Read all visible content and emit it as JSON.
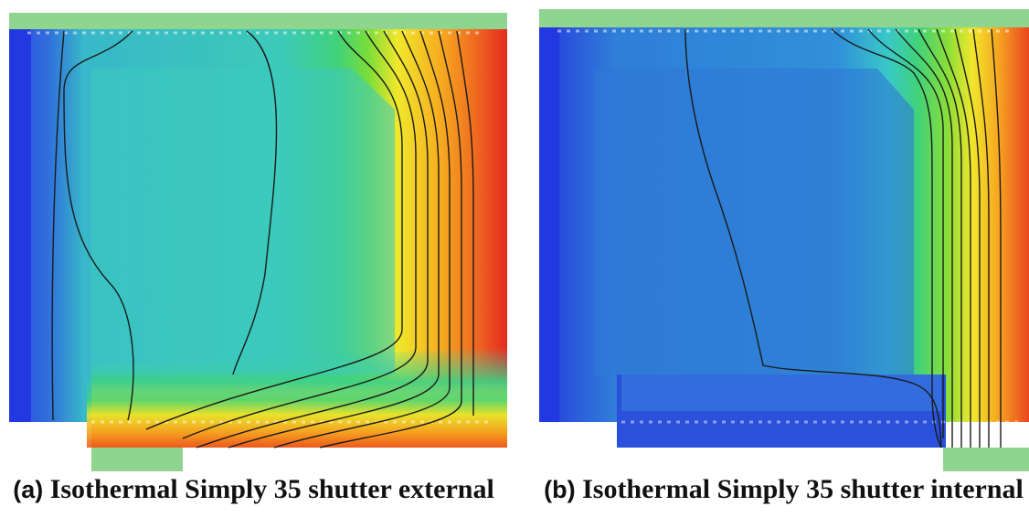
{
  "panels": [
    {
      "id": "a",
      "caption_tag": "(a)",
      "caption_text": "Isothermal Simply 35 shutter external",
      "shutter_position": "external"
    },
    {
      "id": "b",
      "caption_tag": "(b)",
      "caption_text": "Isothermal Simply 35 shutter internal",
      "shutter_position": "internal"
    }
  ],
  "colors": {
    "cold": "#2238e0",
    "mid_cold": "#3a8ee0",
    "interior_a": "#38c8c0",
    "interior_b": "#2f7ed8",
    "green": "#3fd04a",
    "yellow": "#f5e72a",
    "orange": "#f59a20",
    "hot": "#e82b1e",
    "frame_green": "#8fd58f",
    "isoline": "#1a1a1a"
  }
}
